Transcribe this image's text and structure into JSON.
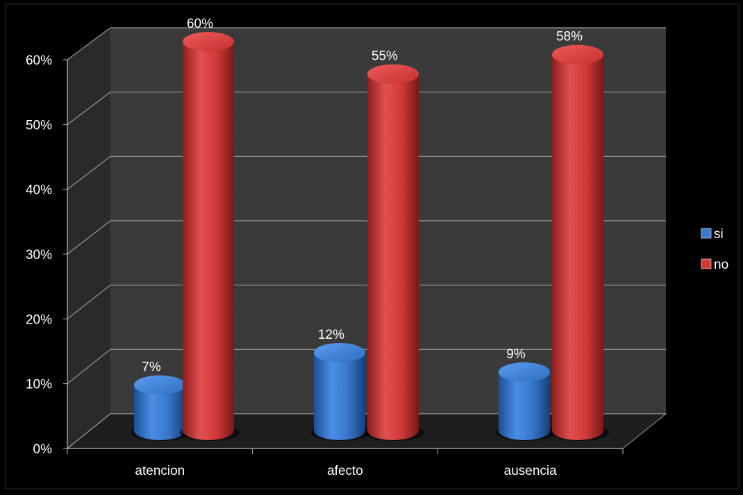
{
  "chart_data": {
    "type": "bar",
    "style": "3d-cylinder",
    "categories": [
      "atencion",
      "afecto",
      "ausencia"
    ],
    "series": [
      {
        "name": "si",
        "values": [
          7,
          12,
          9
        ],
        "labels": [
          "7%",
          "12%",
          "9%"
        ],
        "color": "#3a78cc"
      },
      {
        "name": "no",
        "values": [
          60,
          55,
          58
        ],
        "labels": [
          "60%",
          "55%",
          "58%"
        ],
        "color": "#d23a3a"
      }
    ],
    "ylim": [
      0,
      60
    ],
    "yticks": [
      {
        "value": 0,
        "label": "0%"
      },
      {
        "value": 10,
        "label": "10%"
      },
      {
        "value": 20,
        "label": "20%"
      },
      {
        "value": 30,
        "label": "30%"
      },
      {
        "value": 40,
        "label": "40%"
      },
      {
        "value": 50,
        "label": "50%"
      },
      {
        "value": 60,
        "label": "60%"
      }
    ],
    "grid": true,
    "legend_position": "right",
    "background_color": "#000000",
    "back_wall_color": "#3a3a3a",
    "side_wall_color": "#2a2a2a",
    "gridline_color": "#9a9a9a"
  }
}
